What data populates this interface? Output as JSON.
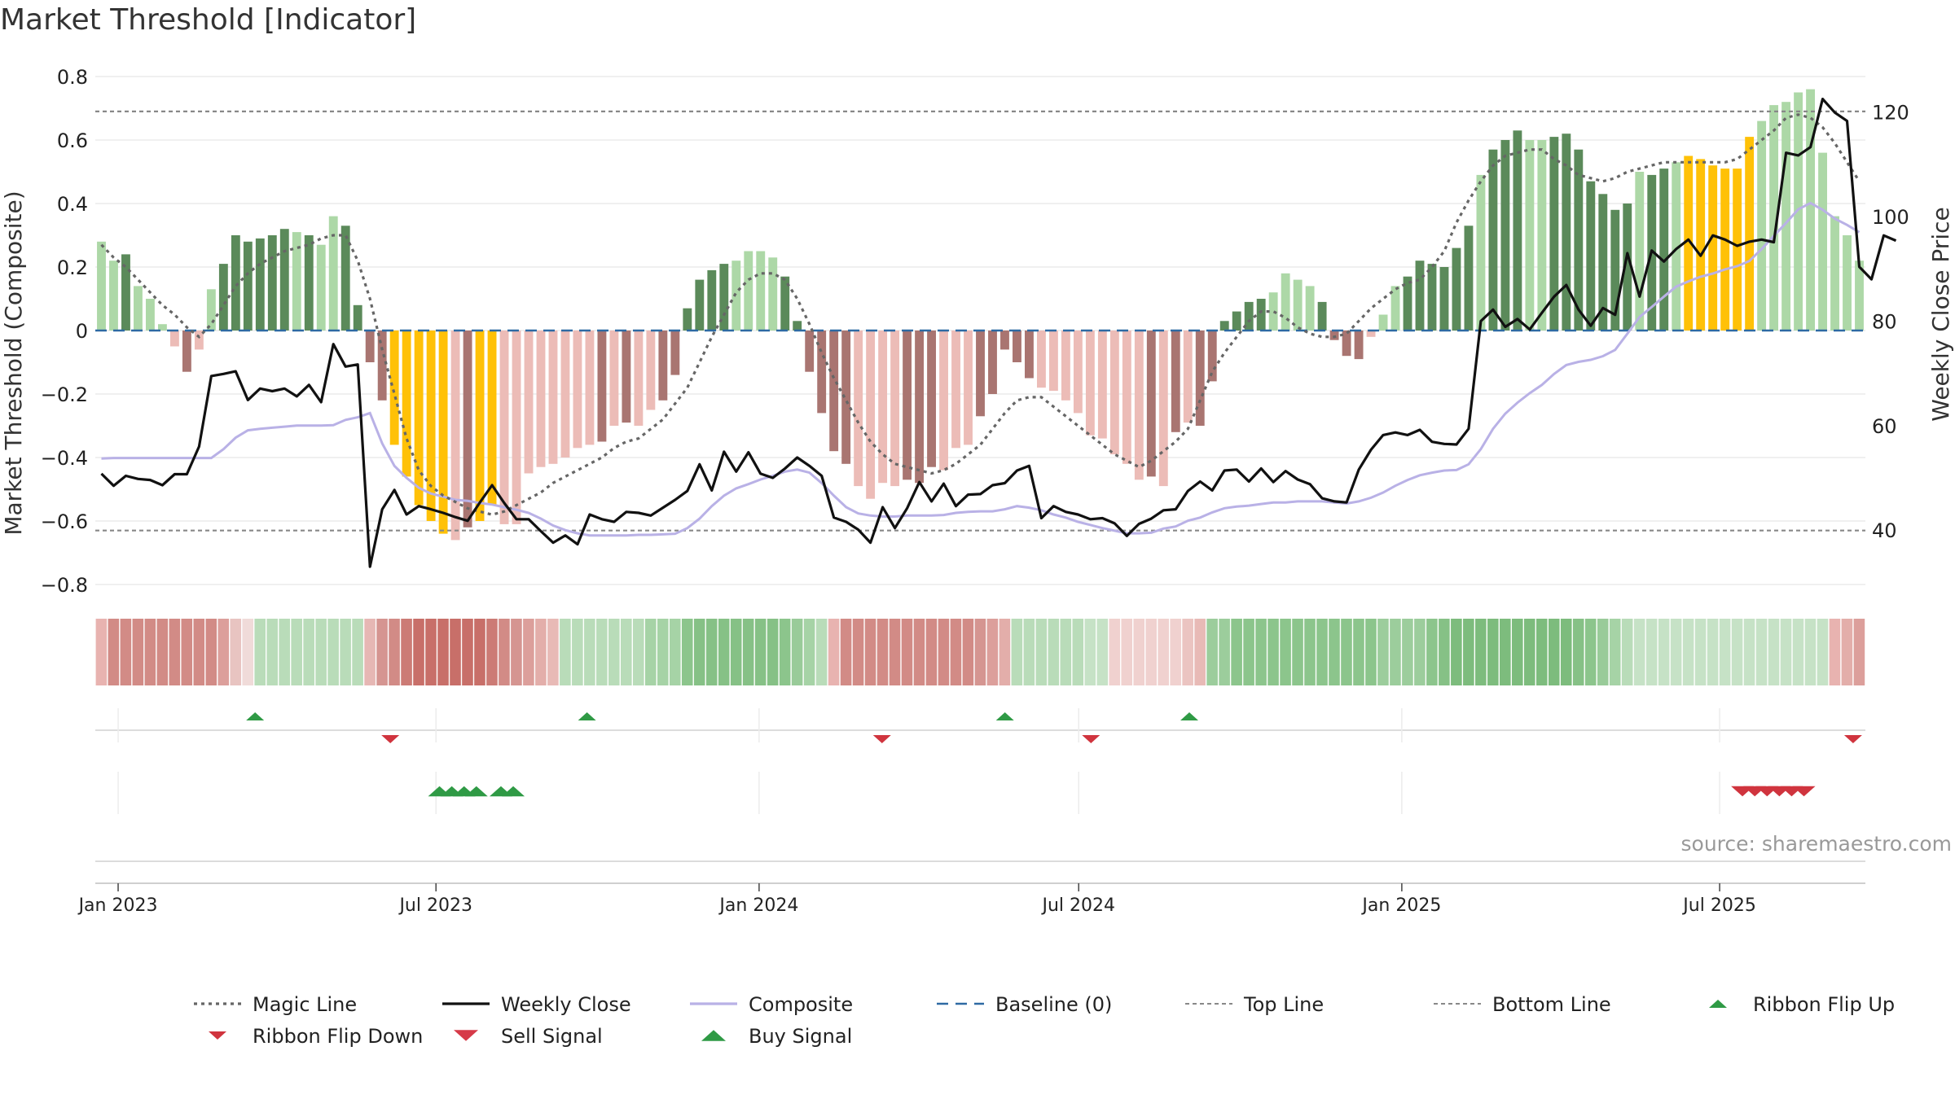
{
  "title": "Market Threshold [Indicator]",
  "source": "source: sharemaestro.com",
  "colors": {
    "bull_dark": "#5b8a5a",
    "bull_light": "#add8a7",
    "bear_dark": "#a97571",
    "bear_light": "#ecbcb7",
    "extreme": "#ffc107",
    "weekly_close": "#111111",
    "composite": "#b9b1e6",
    "magic_line": "#666666",
    "baseline": "#2e6aa3",
    "buy": "#2f9a45",
    "sell": "#d0343e"
  },
  "legend": [
    {
      "label": "Magic Line",
      "style": "dotted",
      "color": "#666666"
    },
    {
      "label": "Weekly Close",
      "style": "solid",
      "color": "#111111"
    },
    {
      "label": "Composite",
      "style": "solid",
      "color": "#b9b1e6"
    },
    {
      "label": "Baseline (0)",
      "style": "dashed",
      "color": "#2e6aa3"
    },
    {
      "label": "Top Line",
      "style": "dashed-thin",
      "color": "#888888"
    },
    {
      "label": "Bottom Line",
      "style": "dashed-thin",
      "color": "#888888"
    },
    {
      "label": "Ribbon Flip Up",
      "style": "triangle-up",
      "color": "#2f9a45"
    },
    {
      "label": "Ribbon Flip Down",
      "style": "triangle-down",
      "color": "#d0343e"
    },
    {
      "label": "Sell Signal",
      "style": "triangle-down-big",
      "color": "#d63a48"
    },
    {
      "label": "Buy Signal",
      "style": "triangle-up-big",
      "color": "#2f9a45"
    }
  ],
  "chart_data": {
    "type": "bar",
    "ylabel": "Market Threshold (Composite)",
    "y2label": "Weekly Close Price",
    "ylim": [
      -0.8,
      0.8
    ],
    "y_ticks": [
      {
        "v": 0.8,
        "label": "0.8"
      },
      {
        "v": 0.6,
        "label": "0.6"
      },
      {
        "v": 0.4,
        "label": "0.4"
      },
      {
        "v": 0.2,
        "label": "0.2"
      },
      {
        "v": 0,
        "label": "0"
      },
      {
        "v": -0.2,
        "label": "−0.2"
      },
      {
        "v": -0.4,
        "label": "−0.4"
      },
      {
        "v": -0.6,
        "label": "−0.6"
      },
      {
        "v": -0.8,
        "label": "−0.8"
      }
    ],
    "y2lim": [
      29.6,
      126.8
    ],
    "y2_ticks": [
      {
        "v": 120,
        "label": "120"
      },
      {
        "v": 100,
        "label": "100"
      },
      {
        "v": 80,
        "label": "80"
      },
      {
        "v": 60,
        "label": "60"
      },
      {
        "v": 40,
        "label": "40"
      }
    ],
    "x_start": "2022-12-19",
    "x_end": "2025-09-22",
    "x_ticks": [
      {
        "date": "2023-01-01",
        "label": "Jan 2023"
      },
      {
        "date": "2023-07-01",
        "label": "Jul 2023"
      },
      {
        "date": "2024-01-01",
        "label": "Jan 2024"
      },
      {
        "date": "2024-07-01",
        "label": "Jul 2024"
      },
      {
        "date": "2025-01-01",
        "label": "Jan 2025"
      },
      {
        "date": "2025-07-01",
        "label": "Jul 2025"
      }
    ],
    "top_line": 0.69,
    "bottom_line": -0.63,
    "bars": [
      0.28,
      0.22,
      0.24,
      0.14,
      0.1,
      0.02,
      -0.05,
      -0.13,
      -0.06,
      0.13,
      0.21,
      0.3,
      0.28,
      0.29,
      0.3,
      0.32,
      0.31,
      0.3,
      0.27,
      0.36,
      0.33,
      0.08,
      -0.1,
      -0.22,
      -0.36,
      -0.46,
      -0.55,
      -0.6,
      -0.64,
      -0.66,
      -0.62,
      -0.6,
      -0.55,
      -0.61,
      -0.61,
      -0.45,
      -0.43,
      -0.42,
      -0.4,
      -0.37,
      -0.36,
      -0.35,
      -0.3,
      -0.29,
      -0.3,
      -0.25,
      -0.22,
      -0.14,
      0.07,
      0.16,
      0.19,
      0.21,
      0.22,
      0.25,
      0.25,
      0.23,
      0.17,
      0.03,
      -0.13,
      -0.26,
      -0.38,
      -0.42,
      -0.49,
      -0.53,
      -0.48,
      -0.49,
      -0.47,
      -0.48,
      -0.43,
      -0.44,
      -0.37,
      -0.36,
      -0.27,
      -0.2,
      -0.06,
      -0.1,
      -0.15,
      -0.18,
      -0.19,
      -0.22,
      -0.26,
      -0.33,
      -0.34,
      -0.39,
      -0.42,
      -0.47,
      -0.46,
      -0.49,
      -0.32,
      -0.29,
      -0.3,
      -0.16,
      0.03,
      0.06,
      0.09,
      0.1,
      0.12,
      0.18,
      0.16,
      0.14,
      0.09,
      -0.03,
      -0.08,
      -0.09,
      -0.02,
      0.05,
      0.14,
      0.17,
      0.22,
      0.21,
      0.2,
      0.26,
      0.33,
      0.49,
      0.57,
      0.6,
      0.63,
      0.6,
      0.6,
      0.61,
      0.62,
      0.57,
      0.47,
      0.43,
      0.38,
      0.4,
      0.5,
      0.49,
      0.51,
      0.53,
      0.55,
      0.54,
      0.52,
      0.51,
      0.51,
      0.61,
      0.66,
      0.71,
      0.72,
      0.75,
      0.76,
      0.56,
      0.36,
      0.3,
      0.22
    ],
    "bar_styles": "LLDLLLLDLLDDDDDDLDLLDDDDXXXXXLDXXLLLLLLLLDLDLLDDDDDDLLLLDDDDDDLLLLDDDLLLDDDDDLLLLLLLLLDLDLDDDDDDLLLLDDDDLLLDDDDDDLDDDLLDDDDDDDLDDLXXXXXXLLL",
    "magic_line": [
      0.27,
      0.23,
      0.2,
      0.16,
      0.12,
      0.08,
      0.05,
      0.01,
      -0.02,
      0.02,
      0.08,
      0.14,
      0.18,
      0.21,
      0.23,
      0.25,
      0.26,
      0.27,
      0.29,
      0.3,
      0.3,
      0.22,
      0.1,
      -0.06,
      -0.2,
      -0.34,
      -0.44,
      -0.49,
      -0.52,
      -0.54,
      -0.56,
      -0.57,
      -0.58,
      -0.57,
      -0.55,
      -0.53,
      -0.51,
      -0.48,
      -0.46,
      -0.44,
      -0.42,
      -0.4,
      -0.37,
      -0.35,
      -0.34,
      -0.31,
      -0.28,
      -0.23,
      -0.18,
      -0.1,
      -0.02,
      0.05,
      0.12,
      0.16,
      0.18,
      0.18,
      0.16,
      0.1,
      0.02,
      -0.07,
      -0.15,
      -0.22,
      -0.29,
      -0.35,
      -0.39,
      -0.42,
      -0.43,
      -0.44,
      -0.45,
      -0.44,
      -0.42,
      -0.39,
      -0.36,
      -0.31,
      -0.26,
      -0.22,
      -0.21,
      -0.21,
      -0.24,
      -0.27,
      -0.3,
      -0.33,
      -0.36,
      -0.39,
      -0.41,
      -0.43,
      -0.41,
      -0.38,
      -0.35,
      -0.31,
      -0.22,
      -0.13,
      -0.07,
      -0.02,
      0.03,
      0.06,
      0.06,
      0.04,
      0.01,
      -0.01,
      -0.02,
      -0.02,
      -0.01,
      0.03,
      0.07,
      0.1,
      0.13,
      0.15,
      0.16,
      0.2,
      0.25,
      0.34,
      0.41,
      0.47,
      0.52,
      0.55,
      0.56,
      0.57,
      0.57,
      0.54,
      0.52,
      0.49,
      0.48,
      0.47,
      0.48,
      0.5,
      0.51,
      0.52,
      0.53,
      0.53,
      0.53,
      0.53,
      0.53,
      0.53,
      0.54,
      0.57,
      0.6,
      0.63,
      0.67,
      0.68,
      0.67,
      0.64,
      0.59,
      0.53,
      0.47
    ],
    "weekly_close": [
      50.8,
      48.5,
      50.4,
      49.8,
      49.6,
      48.6,
      50.7,
      50.7,
      56,
      69.5,
      69.9,
      70.4,
      64.9,
      67.1,
      66.6,
      67.1,
      65.6,
      67.8,
      64.5,
      75.6,
      71.3,
      71.7,
      33,
      44,
      47.7,
      43,
      44.6,
      44,
      43.3,
      42.5,
      41.8,
      45.3,
      48.6,
      45.2,
      42.1,
      42.1,
      39.8,
      37.6,
      39,
      37.3,
      43,
      42.1,
      41.6,
      43.5,
      43.3,
      42.8,
      44.3,
      45.8,
      47.5,
      52.6,
      47.6,
      55,
      51.2,
      54.9,
      50.8,
      50,
      51.8,
      53.9,
      52.3,
      50.4,
      42.4,
      41.6,
      40.1,
      37.6,
      44.4,
      40.4,
      44.2,
      49.2,
      45.5,
      48.9,
      44.6,
      46.8,
      46.9,
      48.6,
      49,
      51.4,
      52.3,
      42.3,
      44.6,
      43.5,
      43,
      42.1,
      42.3,
      41.3,
      38.9,
      41.2,
      42.2,
      43.8,
      44,
      47.5,
      49.3,
      47.6,
      51.4,
      51.6,
      49.3,
      51.8,
      49.2,
      51.3,
      49.7,
      48.8,
      46.1,
      45.5,
      45.3,
      51.6,
      55.4,
      58.2,
      58.7,
      58.2,
      59.2,
      56.9,
      56.5,
      56.4,
      59.4,
      80,
      82.2,
      78.9,
      80.4,
      78.4,
      81.6,
      84.7,
      86.9,
      82.2,
      79.1,
      82.5,
      81.2,
      93,
      84.7,
      93.5,
      91.4,
      93.8,
      95.6,
      92.5,
      96.4,
      95.6,
      94.4,
      95.2,
      95.6,
      95.1,
      112.2,
      111.7,
      113.3,
      122.5,
      119.9,
      118.3,
      90.4,
      88,
      96.4,
      95.4
    ],
    "composite": [
      53.7,
      53.8,
      53.8,
      53.8,
      53.8,
      53.8,
      53.8,
      53.8,
      53.8,
      53.8,
      55.5,
      57.7,
      59.1,
      59.4,
      59.6,
      59.8,
      60,
      60,
      60,
      60.1,
      61.1,
      61.6,
      62.4,
      56.6,
      52.3,
      50,
      48.1,
      47,
      46.4,
      45.8,
      45.6,
      45.2,
      44.9,
      44.4,
      43.9,
      43.3,
      42.2,
      40.9,
      40,
      39.4,
      39,
      39,
      39,
      39,
      39.1,
      39.1,
      39.2,
      39.3,
      40.4,
      42.2,
      44.6,
      46.6,
      48,
      48.8,
      49.7,
      50.4,
      51.2,
      51.6,
      51,
      49,
      46.6,
      44.4,
      43.2,
      42.8,
      42.6,
      42.6,
      42.8,
      42.8,
      42.8,
      42.9,
      43.3,
      43.5,
      43.6,
      43.6,
      44,
      44.6,
      44.3,
      43.8,
      43,
      42.4,
      41.6,
      41,
      40.4,
      39.9,
      39.4,
      39.4,
      39.5,
      40.3,
      40.7,
      41.8,
      42.4,
      43.4,
      44.2,
      44.5,
      44.7,
      45,
      45.3,
      45.3,
      45.5,
      45.5,
      45.5,
      45.3,
      45.1,
      45.5,
      46.2,
      47.2,
      48.5,
      49.6,
      50.5,
      51,
      51.4,
      51.5,
      52.6,
      55.5,
      59.4,
      62.3,
      64.4,
      66.2,
      67.8,
      69.9,
      71.6,
      72.2,
      72.6,
      73.3,
      74.5,
      77.6,
      80.8,
      82.7,
      84.7,
      86.6,
      87.6,
      88.5,
      89.1,
      89.9,
      90.5,
      91.5,
      93.8,
      96.3,
      98.8,
      101.4,
      102.6,
      101.3,
      99.6,
      98.4,
      97
    ],
    "ribbon": "LLLLLLLLLLLLLLLLGGGGGGGGGGGGGGGGGGGGGGGGGGGGGGGGGGGGGGGGGGGGGGGGGGGGGGGGGGGGGGGGGGGGGGGGGGGGGGGGGGGGGGGGGGGGGGGGGGGGGGGGGGGGGGGGGGGGGGGGGGGGGGGGGGGGGGGGGGGG",
    "ribbon_colors": [
      "#e8b3b0",
      "#d28b86",
      "#d28b86",
      "#d28b86",
      "#d28b86",
      "#d28b86",
      "#d28b86",
      "#d28b86",
      "#d28b86",
      "#d28b86",
      "#dc9f9b",
      "#e8c4c1",
      "#f0dbd9",
      "#b9dcb9",
      "#b9dcb9",
      "#b9dcb9",
      "#b9dcb9",
      "#b9dcb9",
      "#b9dcb9",
      "#b9dcb9",
      "#b9dcb9",
      "#b9dcb9",
      "#e6b7b4",
      "#d59591",
      "#d28b86",
      "#cc7b75",
      "#c86f69",
      "#c86f69",
      "#c86f69",
      "#c86f69",
      "#c86f69",
      "#c86f69",
      "#cc7b75",
      "#d28b86",
      "#d59591",
      "#dc9f9b",
      "#e3aeaa",
      "#e8bab6",
      "#b9dcb9",
      "#b9dcb9",
      "#b9dcb9",
      "#b9dcb9",
      "#b9dcb9",
      "#b9dcb9",
      "#b9dcb9",
      "#a6d3a6",
      "#a6d3a6",
      "#a6d3a6",
      "#8cc58c",
      "#86c186",
      "#86c186",
      "#86c186",
      "#86c186",
      "#86c186",
      "#86c186",
      "#86c186",
      "#8cc58c",
      "#99cb99",
      "#a6d3a6",
      "#b9dcb9",
      "#e8b3b0",
      "#d28b86",
      "#d28b86",
      "#d28b86",
      "#d28b86",
      "#d28b86",
      "#d28b86",
      "#d28b86",
      "#d28b86",
      "#d28b86",
      "#d28b86",
      "#d28b86",
      "#d59591",
      "#dc9f9b",
      "#e3aeaa",
      "#b9dcb9",
      "#b9dcb9",
      "#b9dcb9",
      "#b9dcb9",
      "#b9dcb9",
      "#b9dcb9",
      "#c6e2c6",
      "#c6e2c6",
      "#f0d1cf",
      "#f0d1cf",
      "#f0d1cf",
      "#f0d1cf",
      "#f0d1cf",
      "#f0d1cf",
      "#ebc4c1",
      "#e8bab6",
      "#9ccd9c",
      "#9ccd9c",
      "#8cc58c",
      "#8cc58c",
      "#8cc58c",
      "#8cc58c",
      "#8cc58c",
      "#8cc58c",
      "#8cc58c",
      "#8cc58c",
      "#8cc58c",
      "#8cc58c",
      "#8cc58c",
      "#8cc58c",
      "#9ccd9c",
      "#9ccd9c",
      "#9ccd9c",
      "#9ccd9c",
      "#8cc58c",
      "#86c186",
      "#7dbc7d",
      "#7dbc7d",
      "#7dbc7d",
      "#7dbc7d",
      "#7dbc7d",
      "#7dbc7d",
      "#7dbc7d",
      "#7dbc7d",
      "#7dbc7d",
      "#7dbc7d",
      "#86c186",
      "#8cc58c",
      "#99cb99",
      "#a6d3a6",
      "#b9dcb9",
      "#c6e2c6",
      "#c6e2c6",
      "#c6e2c6",
      "#c6e2c6",
      "#c6e2c6",
      "#c6e2c6",
      "#c6e2c6",
      "#c6e2c6",
      "#c6e2c6",
      "#c6e2c6",
      "#c6e2c6",
      "#c6e2c6",
      "#c6e2c6",
      "#c6e2c6",
      "#c6e2c6",
      "#c6e2c6",
      "#e8b3b0",
      "#e3aeaa",
      "#dc9f9b"
    ],
    "flip_up_dates": [
      "2023-03-20",
      "2023-09-25",
      "2024-05-20",
      "2024-09-02"
    ],
    "flip_down_dates": [
      "2023-06-05",
      "2024-03-11",
      "2024-07-08",
      "2025-09-15"
    ],
    "buy_dates": [
      "2023-07-03",
      "2023-07-10",
      "2023-07-17",
      "2023-07-24",
      "2023-08-07",
      "2023-08-14"
    ],
    "sell_dates": [
      "2025-07-14",
      "2025-07-21",
      "2025-07-28",
      "2025-08-04",
      "2025-08-11",
      "2025-08-18"
    ]
  }
}
